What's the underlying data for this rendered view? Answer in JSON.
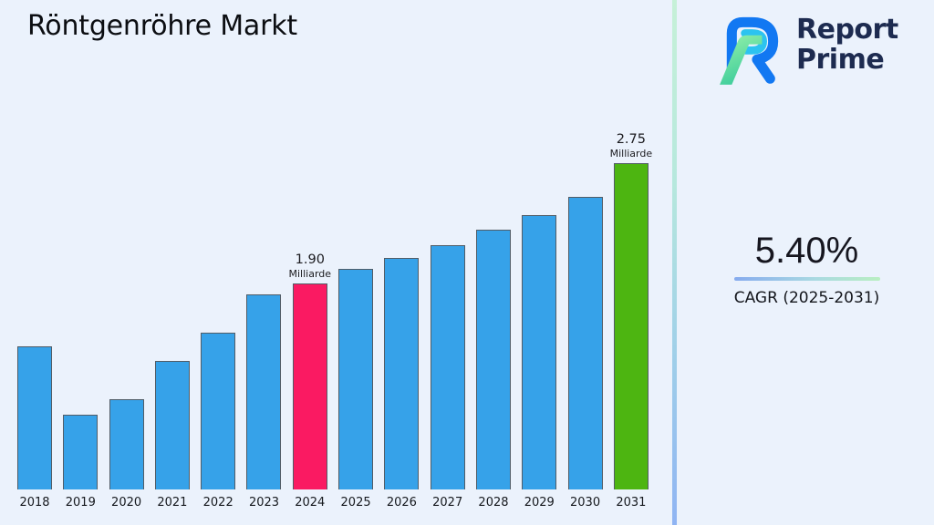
{
  "page": {
    "title": "Röntgenröhre Markt"
  },
  "brand": {
    "name_line1": "Report",
    "name_line2": "Prime",
    "navy": "#1d2b50",
    "logo_blue": "#1278f2",
    "logo_cyan": "#2cc3f0",
    "logo_green_light": "#97f2a9",
    "logo_green_dark": "#3ecd9c"
  },
  "stats": {
    "cagr_value": "5.40%",
    "cagr_label": "CAGR (2025-2031)",
    "underline_from": "#86abee",
    "underline_to": "#b9efc1"
  },
  "theme": {
    "background": "#ebf2fc",
    "bar_border": "#515c66",
    "divider_top": "#c6f1d8",
    "divider_bottom": "#8fb4f3"
  },
  "chart_data": {
    "type": "bar",
    "title": "Röntgenröhre Markt",
    "unit": "Milliarde",
    "xlabel": "",
    "ylabel": "",
    "grid": false,
    "y_axis_shown": false,
    "ylim": [
      0.44,
      3.02
    ],
    "categories": [
      "2018",
      "2019",
      "2020",
      "2021",
      "2022",
      "2023",
      "2024",
      "2025",
      "2026",
      "2027",
      "2028",
      "2029",
      "2030",
      "2031"
    ],
    "values": [
      1.45,
      0.97,
      1.08,
      1.35,
      1.55,
      1.82,
      1.9,
      2.0,
      2.08,
      2.17,
      2.28,
      2.38,
      2.51,
      2.75
    ],
    "colors": {
      "default": "#36a2e9",
      "2024": "#fa1a62",
      "2031": "#4db511"
    },
    "annotations": {
      "2024": {
        "value": "1.90",
        "unit": "Milliarde"
      },
      "2031": {
        "value": "2.75",
        "unit": "Milliarde"
      }
    }
  }
}
